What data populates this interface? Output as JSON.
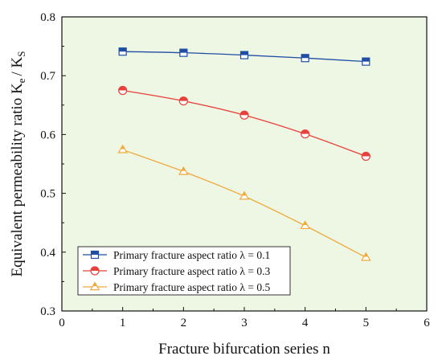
{
  "chart_data": {
    "type": "line",
    "xlabel": "Fracture bifurcation series n",
    "ylabel": {
      "main": "Equivalent permeability ratio K",
      "sub1": "e",
      "mid": "/ K",
      "sub2": "S"
    },
    "xlim": [
      0,
      6
    ],
    "ylim": [
      0.3,
      0.8
    ],
    "x_ticks": [
      "0",
      "1",
      "2",
      "3",
      "4",
      "5",
      "6"
    ],
    "y_ticks": [
      "0.3",
      "0.4",
      "0.5",
      "0.6",
      "0.7",
      "0.8"
    ],
    "grid": false,
    "legend_position": "bottom-left",
    "background_color": "#eef6e4",
    "series": [
      {
        "name": "Primary fracture aspect ratio λ = 0.1",
        "marker": "square",
        "color": "#1f4ea3",
        "x": [
          1,
          2,
          3,
          4,
          5
        ],
        "y": [
          0.741,
          0.739,
          0.735,
          0.73,
          0.724
        ]
      },
      {
        "name": "Primary fracture aspect ratio λ = 0.3",
        "marker": "circle",
        "color": "#e8403a",
        "x": [
          1,
          2,
          3,
          4,
          5
        ],
        "y": [
          0.675,
          0.657,
          0.633,
          0.601,
          0.563
        ]
      },
      {
        "name": "Primary fracture aspect ratio λ = 0.5",
        "marker": "triangle",
        "color": "#f2a93b",
        "x": [
          1,
          2,
          3,
          4,
          5
        ],
        "y": [
          0.574,
          0.537,
          0.495,
          0.445,
          0.391
        ]
      }
    ]
  }
}
